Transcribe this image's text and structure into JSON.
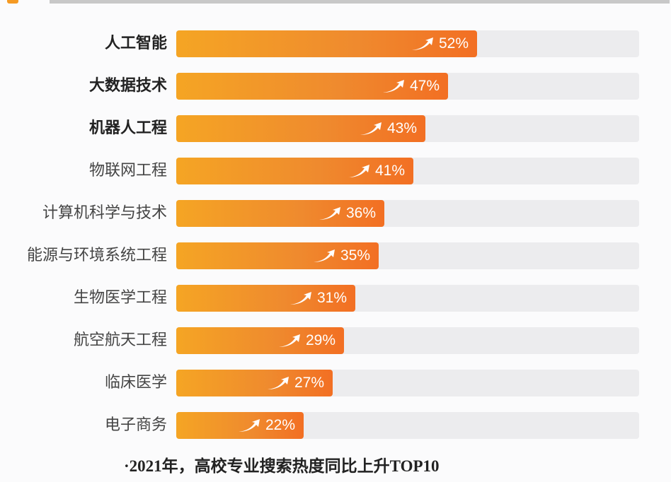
{
  "header": {
    "accent_color": "#f59a23",
    "rule_color": "#c8c8c8"
  },
  "chart_data": {
    "type": "bar",
    "orientation": "horizontal",
    "title": "2021年，高校专业搜索热度同比上升TOP10",
    "xlabel": "",
    "ylabel": "",
    "xlim": [
      0,
      80
    ],
    "unit": "%",
    "categories": [
      "人工智能",
      "大数据技术",
      "机器人工程",
      "物联网工程",
      "计算机科学与技术",
      "能源与环境系统工程",
      "生物医学工程",
      "航空航天工程",
      "临床医学",
      "电子商务"
    ],
    "values": [
      52,
      47,
      43,
      41,
      36,
      35,
      31,
      29,
      27,
      22
    ],
    "value_labels": [
      "52%",
      "47%",
      "43%",
      "41%",
      "36%",
      "35%",
      "31%",
      "29%",
      "27%",
      "22%"
    ],
    "bold_categories": [
      "人工智能",
      "大数据技术",
      "机器人工程"
    ],
    "bar_color_start": "#f5a524",
    "bar_color_end": "#f26f23",
    "track_color": "#ececee",
    "grid": false,
    "legend": "none"
  },
  "footer": {
    "caption": "·2021年，高校专业搜索热度同比上升TOP10"
  }
}
